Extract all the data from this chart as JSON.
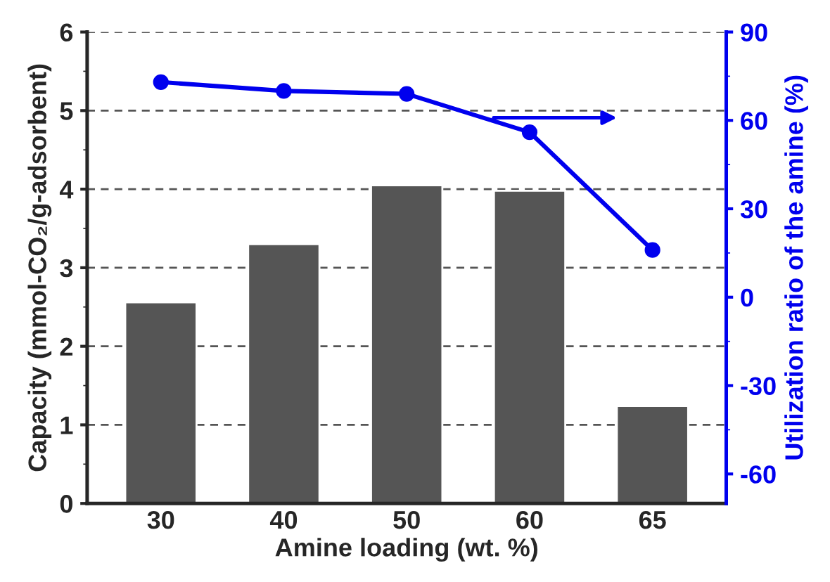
{
  "chart_data": {
    "type": "bar",
    "xlabel": "Amine loading (wt. %)",
    "ylabel": "Capacity (mmol-CO₂/g-adsorbent)",
    "y2label": "Utilization ratio of the amine (%)",
    "categories": [
      "30",
      "40",
      "50",
      "60",
      "65"
    ],
    "series": [
      {
        "color": "#555555",
        "values": [
          2.56,
          3.3,
          4.05,
          3.98,
          1.24
        ]
      },
      {
        "type": "line",
        "axis": "y2",
        "color": "#0000ee",
        "marker": "circle",
        "values": [
          73,
          70,
          69,
          56,
          16
        ]
      }
    ],
    "ylim": [
      0,
      6
    ],
    "yticks": [
      0,
      1,
      2,
      3,
      4,
      5,
      6
    ],
    "y2lim": [
      -70,
      90
    ],
    "y2ticks": [
      -60,
      -30,
      0,
      30,
      60,
      90
    ],
    "grid": "y",
    "legend": false
  }
}
